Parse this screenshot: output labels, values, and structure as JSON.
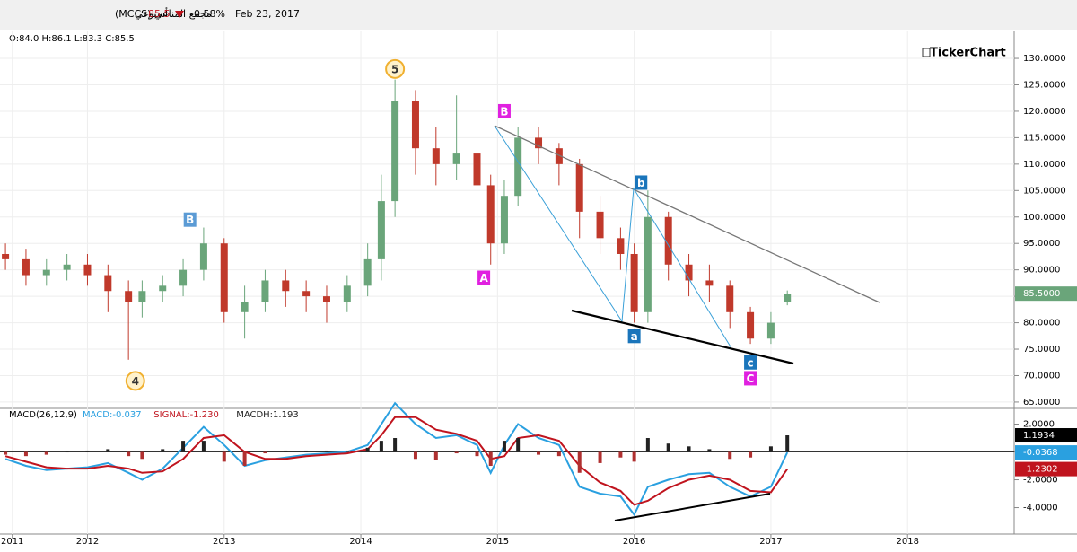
{
  "header": {
    "name": "مجمع المناعي (MCCS)",
    "period": "أسبوعي",
    "price": "85.5",
    "change": "-0.58%",
    "date": "Feb 23, 2017",
    "ohlc": "O:84.0 H:86.1 L:83.3 C:85.5",
    "brand": "TickerChart"
  },
  "chart_data": [
    {
      "type": "candlestick",
      "x": [
        2011.4,
        2011.55,
        2011.7,
        2011.85,
        2012.0,
        2012.15,
        2012.3,
        2012.4,
        2012.55,
        2012.7,
        2012.85,
        2013.0,
        2013.15,
        2013.3,
        2013.45,
        2013.6,
        2013.75,
        2013.9,
        2014.05,
        2014.15,
        2014.25,
        2014.4,
        2014.55,
        2014.7,
        2014.85,
        2014.95,
        2015.05,
        2015.15,
        2015.3,
        2015.45,
        2015.6,
        2015.75,
        2015.9,
        2016.0,
        2016.1,
        2016.25,
        2016.4,
        2016.55,
        2016.7,
        2016.85,
        2017.0,
        2017.12
      ],
      "open": [
        93,
        92,
        89,
        90,
        91,
        89,
        86,
        84,
        86,
        87,
        90,
        95,
        82,
        84,
        88,
        86,
        85,
        84,
        87,
        92,
        103,
        122,
        113,
        110,
        112,
        106,
        95,
        104,
        115,
        113,
        110,
        101,
        96,
        93,
        82,
        100,
        91,
        88,
        87,
        82,
        77,
        84
      ],
      "high": [
        95,
        94,
        92,
        93,
        93,
        91,
        88,
        88,
        89,
        92,
        98,
        96,
        87,
        90,
        90,
        88,
        87,
        89,
        95,
        108,
        126,
        124,
        117,
        123,
        114,
        108,
        107,
        117,
        117,
        114,
        111,
        104,
        98,
        95,
        105,
        101,
        93,
        91,
        88,
        83,
        82,
        86.1
      ],
      "low": [
        90,
        87,
        87,
        88,
        87,
        82,
        73,
        81,
        84,
        85,
        88,
        80,
        77,
        82,
        83,
        82,
        80,
        82,
        85,
        88,
        100,
        108,
        106,
        107,
        102,
        91,
        93,
        102,
        110,
        106,
        96,
        93,
        90,
        80,
        80,
        88,
        85,
        84,
        79,
        76,
        76,
        83.3
      ],
      "close": [
        92,
        89,
        90,
        91,
        89,
        86,
        84,
        86,
        87,
        90,
        95,
        82,
        84,
        88,
        86,
        85,
        84,
        87,
        92,
        103,
        122,
        113,
        110,
        112,
        106,
        95,
        104,
        115,
        113,
        110,
        101,
        96,
        93,
        82,
        100,
        91,
        88,
        87,
        82,
        77,
        80,
        85.5
      ],
      "last_label": "85.5000",
      "up_color": "#6aa57a",
      "down_color": "#c0392b",
      "xlim": [
        2011.36,
        2018.78
      ],
      "xticks": [
        {
          "value": 2011.45,
          "label": "2011"
        },
        2012,
        2013,
        2014,
        2015,
        2016,
        2017,
        2018
      ],
      "ylim": [
        63.8,
        135.1
      ],
      "yticks": [
        {
          "value": 65,
          "label": "65.0000"
        },
        {
          "value": 70,
          "label": "70.0000"
        },
        {
          "value": 75,
          "label": "75.0000"
        },
        {
          "value": 80,
          "label": "80.0000"
        },
        {
          "value": 85,
          "label": "85.0000"
        },
        {
          "value": 90,
          "label": "90.0000"
        },
        {
          "value": 95,
          "label": "95.0000"
        },
        {
          "value": 100,
          "label": "100.0000"
        },
        {
          "value": 105,
          "label": "105.0000"
        },
        {
          "value": 110,
          "label": "110.0000"
        },
        {
          "value": 115,
          "label": "115.0000"
        },
        {
          "value": 120,
          "label": "120.0000"
        },
        {
          "value": 125,
          "label": "125.0000"
        },
        {
          "value": 130,
          "label": "130.0000"
        }
      ],
      "grid": true,
      "annotations": [
        {
          "text": "5",
          "x": 2014.25,
          "y": 128,
          "color": "#f0b030"
        },
        {
          "text": "4",
          "x": 2012.35,
          "y": 69,
          "color": "#f0b030"
        },
        {
          "text": "B",
          "x": 2012.75,
          "y": 99.5,
          "color": "#5b9bd5"
        },
        {
          "text": "A",
          "x": 2014.9,
          "y": 88.5,
          "color": "#e020e0"
        },
        {
          "text": "B",
          "x": 2015.05,
          "y": 120,
          "color": "#e020e0"
        },
        {
          "text": "b",
          "x": 2016.05,
          "y": 106.5,
          "color": "#1a75bb"
        },
        {
          "text": "a",
          "x": 2016.0,
          "y": 77.5,
          "color": "#1a75bb"
        },
        {
          "text": "c",
          "x": 2016.85,
          "y": 72.5,
          "color": "#1a75bb"
        },
        {
          "text": "C",
          "x": 2016.85,
          "y": 69.5,
          "color": "#e020e0"
        }
      ]
    },
    {
      "type": "macd",
      "title": "MACD(26,12,9)",
      "x": [
        2011.4,
        2011.55,
        2011.7,
        2011.85,
        2012.0,
        2012.15,
        2012.3,
        2012.4,
        2012.55,
        2012.7,
        2012.85,
        2013.0,
        2013.15,
        2013.3,
        2013.45,
        2013.6,
        2013.75,
        2013.9,
        2014.05,
        2014.15,
        2014.25,
        2014.4,
        2014.55,
        2014.7,
        2014.85,
        2014.95,
        2015.05,
        2015.15,
        2015.3,
        2015.45,
        2015.6,
        2015.75,
        2015.9,
        2016.0,
        2016.1,
        2016.25,
        2016.4,
        2016.55,
        2016.7,
        2016.85,
        2017.0,
        2017.12
      ],
      "series": [
        {
          "name": "MACD:-0.037",
          "color": "#2aa0e0",
          "label": "-0.0368",
          "values": [
            -0.5,
            -1.0,
            -1.3,
            -1.2,
            -1.1,
            -0.8,
            -1.5,
            -2.0,
            -1.2,
            0.3,
            1.8,
            0.5,
            -1.0,
            -0.6,
            -0.4,
            -0.2,
            -0.1,
            0.0,
            0.5,
            2.0,
            3.5,
            2.0,
            1.0,
            1.2,
            0.5,
            -1.5,
            0.5,
            2.0,
            1.0,
            0.5,
            -2.5,
            -3.0,
            -3.2,
            -4.5,
            -2.5,
            -2.0,
            -1.6,
            -1.5,
            -2.5,
            -3.2,
            -2.5,
            -0.037
          ]
        },
        {
          "name": "SIGNAL:-1.230",
          "color": "#c0141e",
          "label": "-1.2302",
          "values": [
            -0.3,
            -0.7,
            -1.1,
            -1.2,
            -1.2,
            -1.0,
            -1.2,
            -1.5,
            -1.4,
            -0.5,
            1.0,
            1.2,
            0.0,
            -0.5,
            -0.5,
            -0.3,
            -0.2,
            -0.1,
            0.2,
            1.2,
            2.5,
            2.5,
            1.6,
            1.3,
            0.8,
            -0.5,
            -0.3,
            1.0,
            1.2,
            0.8,
            -1.0,
            -2.2,
            -2.8,
            -3.8,
            -3.5,
            -2.6,
            -2.0,
            -1.7,
            -2.0,
            -2.8,
            -2.9,
            -1.23
          ]
        },
        {
          "name": "MACDH:1.193",
          "color": "#222222",
          "label": "1.1934",
          "values": [
            -0.2,
            -0.3,
            -0.2,
            0,
            0.1,
            0.2,
            -0.3,
            -0.5,
            0.2,
            0.8,
            0.8,
            -0.7,
            -1.0,
            -0.1,
            0.1,
            0.1,
            0.1,
            0.1,
            0.3,
            0.8,
            1.0,
            -0.5,
            -0.6,
            -0.1,
            -0.3,
            -1.0,
            0.8,
            1.0,
            -0.2,
            -0.3,
            -1.5,
            -0.8,
            -0.4,
            -0.7,
            1.0,
            0.6,
            0.4,
            0.2,
            -0.5,
            -0.4,
            0.4,
            1.193
          ]
        }
      ],
      "ylim": [
        -5.9,
        3.0
      ],
      "yticks": [
        {
          "value": 2,
          "label": "2.0000"
        },
        {
          "value": 0,
          "label": "0.0000"
        },
        {
          "value": -2,
          "label": "-2.0000"
        },
        {
          "value": -4,
          "label": "-4.0000"
        }
      ]
    }
  ]
}
